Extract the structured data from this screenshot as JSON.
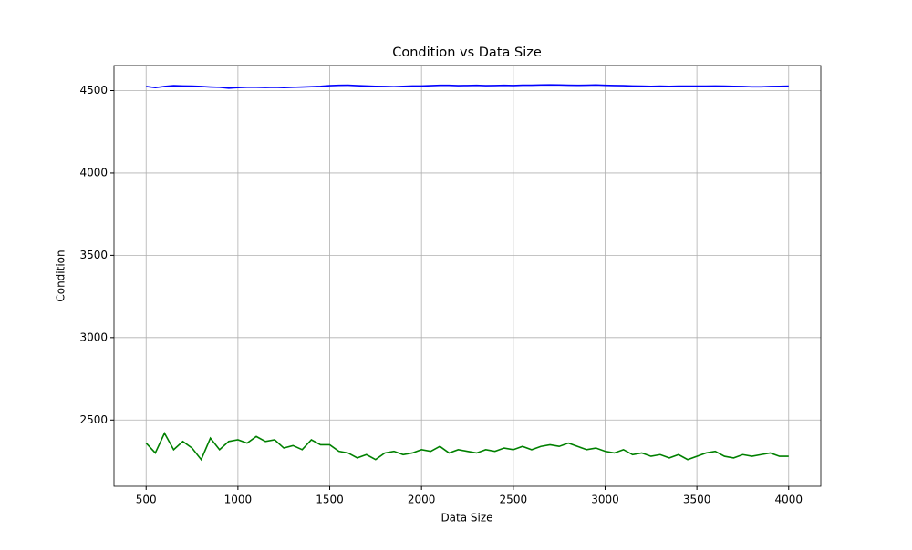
{
  "chart_data": {
    "type": "line",
    "title": "Condition vs Data Size",
    "xlabel": "Data Size",
    "ylabel": "Condition",
    "x": [
      500,
      550,
      600,
      650,
      700,
      750,
      800,
      850,
      900,
      950,
      1000,
      1050,
      1100,
      1150,
      1200,
      1250,
      1300,
      1350,
      1400,
      1450,
      1500,
      1550,
      1600,
      1650,
      1700,
      1750,
      1800,
      1850,
      1900,
      1950,
      2000,
      2050,
      2100,
      2150,
      2200,
      2250,
      2300,
      2350,
      2400,
      2450,
      2500,
      2550,
      2600,
      2650,
      2700,
      2750,
      2800,
      2850,
      2900,
      2950,
      3000,
      3050,
      3100,
      3150,
      3200,
      3250,
      3300,
      3350,
      3400,
      3450,
      3500,
      3550,
      3600,
      3650,
      3700,
      3750,
      3800,
      3850,
      3900,
      3950,
      4000
    ],
    "series": [
      {
        "color": "#0000ff",
        "values": [
          4525,
          4518,
          4525,
          4530,
          4528,
          4527,
          4525,
          4522,
          4520,
          4515,
          4518,
          4520,
          4520,
          4519,
          4520,
          4518,
          4520,
          4522,
          4524,
          4526,
          4530,
          4532,
          4533,
          4530,
          4528,
          4526,
          4525,
          4524,
          4526,
          4528,
          4528,
          4530,
          4532,
          4532,
          4530,
          4531,
          4532,
          4530,
          4531,
          4532,
          4531,
          4533,
          4533,
          4534,
          4535,
          4534,
          4533,
          4532,
          4533,
          4534,
          4532,
          4531,
          4530,
          4528,
          4527,
          4526,
          4527,
          4526,
          4527,
          4527,
          4527,
          4527,
          4528,
          4527,
          4526,
          4525,
          4523,
          4523,
          4525,
          4526,
          4527
        ]
      },
      {
        "color": "#008000",
        "values": [
          2360,
          2300,
          2420,
          2320,
          2370,
          2330,
          2260,
          2390,
          2320,
          2370,
          2380,
          2360,
          2400,
          2370,
          2380,
          2330,
          2345,
          2320,
          2380,
          2350,
          2350,
          2310,
          2300,
          2270,
          2290,
          2260,
          2300,
          2310,
          2290,
          2300,
          2320,
          2310,
          2340,
          2300,
          2320,
          2310,
          2300,
          2320,
          2310,
          2330,
          2320,
          2340,
          2320,
          2340,
          2350,
          2340,
          2360,
          2340,
          2320,
          2330,
          2310,
          2300,
          2320,
          2290,
          2300,
          2280,
          2290,
          2270,
          2290,
          2260,
          2280,
          2300,
          2310,
          2280,
          2270,
          2290,
          2280,
          2290,
          2300,
          2280,
          2280
        ]
      }
    ],
    "xlim": [
      325,
      4175
    ],
    "ylim": [
      2098,
      4652
    ],
    "xticks": [
      500,
      1000,
      1500,
      2000,
      2500,
      3000,
      3500,
      4000
    ],
    "yticks": [
      2500,
      3000,
      3500,
      4000,
      4500
    ],
    "grid": true
  }
}
